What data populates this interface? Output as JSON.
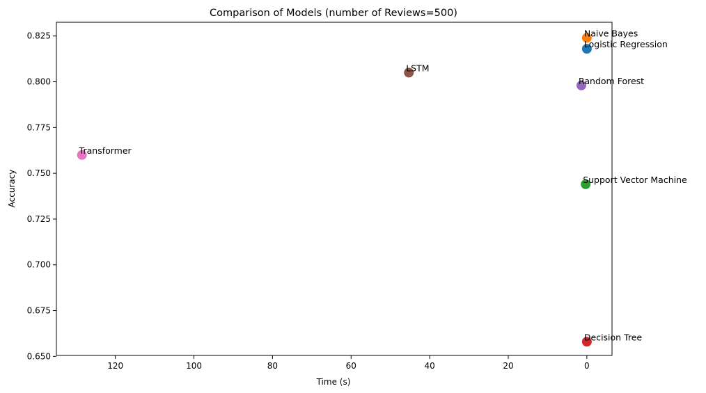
{
  "chart_data": {
    "type": "scatter",
    "title": "Comparison of Models (number of Reviews=500)",
    "xlabel": "Time (s)",
    "ylabel": "Accuracy",
    "x_inverted": true,
    "xlim": [
      135.0,
      -6.4
    ],
    "ylim": [
      0.6505,
      0.8325
    ],
    "x_ticks": [
      120,
      100,
      80,
      60,
      40,
      20,
      0
    ],
    "x_tick_labels": [
      "120",
      "100",
      "80",
      "60",
      "40",
      "20",
      "0"
    ],
    "y_ticks": [
      0.65,
      0.675,
      0.7,
      0.725,
      0.75,
      0.775,
      0.8,
      0.825
    ],
    "y_tick_labels": [
      "0.650",
      "0.675",
      "0.700",
      "0.725",
      "0.750",
      "0.775",
      "0.800",
      "0.825"
    ],
    "grid": false,
    "points": [
      {
        "label": "Logistic Regression",
        "x": 0.0,
        "y": 0.818,
        "color": "#1f77b4"
      },
      {
        "label": "Naive Bayes",
        "x": 0.0,
        "y": 0.824,
        "color": "#ff7f0e"
      },
      {
        "label": "Support Vector Machine",
        "x": 0.3,
        "y": 0.744,
        "color": "#2ca02c"
      },
      {
        "label": "Decision Tree",
        "x": 0.0,
        "y": 0.658,
        "color": "#d62728"
      },
      {
        "label": "Random Forest",
        "x": 1.4,
        "y": 0.798,
        "color": "#9467bd"
      },
      {
        "label": "LSTM",
        "x": 45.3,
        "y": 0.805,
        "color": "#8c564b"
      },
      {
        "label": "Transformer",
        "x": 128.5,
        "y": 0.76,
        "color": "#e377c2"
      }
    ]
  }
}
